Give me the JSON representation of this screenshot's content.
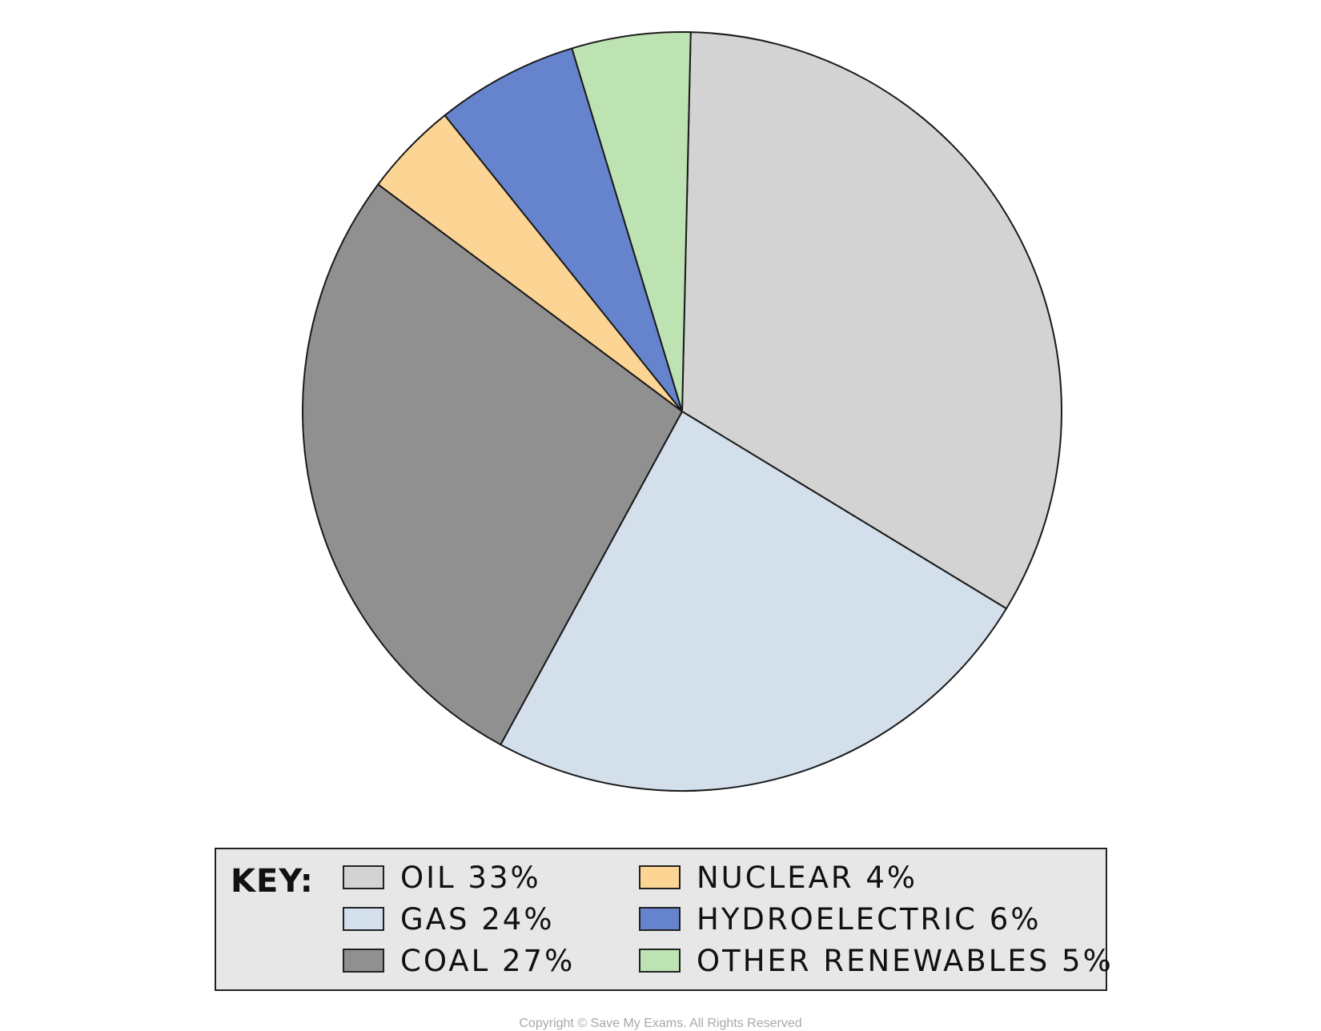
{
  "chart_data": {
    "type": "pie",
    "start_angle_deg": 88.7,
    "direction": "clockwise",
    "slices": [
      {
        "label": "OIL",
        "value": 33,
        "value_text": "33%",
        "color": "#d3d3d3"
      },
      {
        "label": "GAS",
        "value": 24,
        "value_text": "24%",
        "color": "#d3e0ec"
      },
      {
        "label": "COAL",
        "value": 27,
        "value_text": "27%",
        "color": "#909090"
      },
      {
        "label": "NUCLEAR",
        "value": 4,
        "value_text": "4%",
        "color": "#fcd595"
      },
      {
        "label": "HYDROELECTRIC",
        "value": 6,
        "value_text": "6%",
        "color": "#6683ce"
      },
      {
        "label": "OTHER RENEWABLES",
        "value": 5,
        "value_text": "5%",
        "color": "#bee3b2"
      }
    ],
    "legend": {
      "title": "KEY:",
      "placement": "bottom"
    }
  },
  "footer": {
    "copyright": "Copyright © Save My Exams. All Rights Reserved"
  }
}
